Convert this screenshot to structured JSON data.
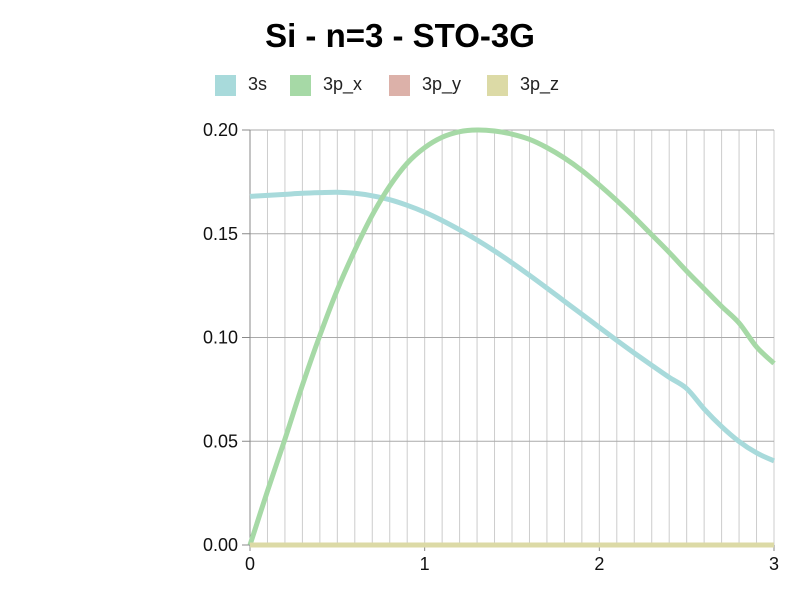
{
  "chart_data": {
    "type": "line",
    "title": "Si - n=3 - STO-3G",
    "xlabel": "",
    "ylabel": "",
    "xlim": [
      0,
      3
    ],
    "ylim": [
      0,
      0.2
    ],
    "x_ticks": [
      0,
      1,
      2,
      3
    ],
    "x_tick_labels": [
      "0",
      "1",
      "2",
      "3"
    ],
    "y_ticks": [
      0,
      0.05,
      0.1,
      0.15,
      0.2
    ],
    "y_tick_labels": [
      "0.00",
      "0.05",
      "0.10",
      "0.15",
      "0.20"
    ],
    "grid": true,
    "legend_position": "top",
    "x": [
      0,
      0.1,
      0.2,
      0.3,
      0.4,
      0.5,
      0.6,
      0.7,
      0.8,
      0.9,
      1.0,
      1.1,
      1.2,
      1.3,
      1.4,
      1.5,
      1.6,
      1.7,
      1.8,
      1.9,
      2.0,
      2.1,
      2.2,
      2.3,
      2.4,
      2.5,
      2.6,
      2.7,
      2.8,
      2.9,
      3.0
    ],
    "series": [
      {
        "name": "3s",
        "color": "#a8dadb",
        "values": [
          0.168,
          0.1685,
          0.169,
          0.1695,
          0.1698,
          0.17,
          0.1695,
          0.1683,
          0.1664,
          0.1637,
          0.1604,
          0.1564,
          0.1519,
          0.147,
          0.1417,
          0.136,
          0.13,
          0.1238,
          0.1175,
          0.1112,
          0.1049,
          0.0986,
          0.0925,
          0.0866,
          0.0808,
          0.0754,
          0.0656,
          0.0571,
          0.0499,
          0.0444,
          0.0405
        ]
      },
      {
        "name": "3p_x",
        "color": "#a6d9a6",
        "values": [
          0.0,
          0.026,
          0.051,
          0.077,
          0.101,
          0.123,
          0.142,
          0.159,
          0.173,
          0.184,
          0.1915,
          0.1965,
          0.1992,
          0.2,
          0.1995,
          0.198,
          0.1955,
          0.1915,
          0.1865,
          0.1805,
          0.1735,
          0.166,
          0.158,
          0.1495,
          0.141,
          0.132,
          0.1235,
          0.115,
          0.107,
          0.0955,
          0.0875
        ]
      },
      {
        "name": "3p_y",
        "color": "#dcb1a9",
        "values": [
          0,
          0,
          0,
          0,
          0,
          0,
          0,
          0,
          0,
          0,
          0,
          0,
          0,
          0,
          0,
          0,
          0,
          0,
          0,
          0,
          0,
          0,
          0,
          0,
          0,
          0,
          0,
          0,
          0,
          0,
          0
        ]
      },
      {
        "name": "3p_z",
        "color": "#dcdaa6",
        "values": [
          0,
          0,
          0,
          0,
          0,
          0,
          0,
          0,
          0,
          0,
          0,
          0,
          0,
          0,
          0,
          0,
          0,
          0,
          0,
          0,
          0,
          0,
          0,
          0,
          0,
          0,
          0,
          0,
          0,
          0,
          0
        ]
      }
    ]
  }
}
